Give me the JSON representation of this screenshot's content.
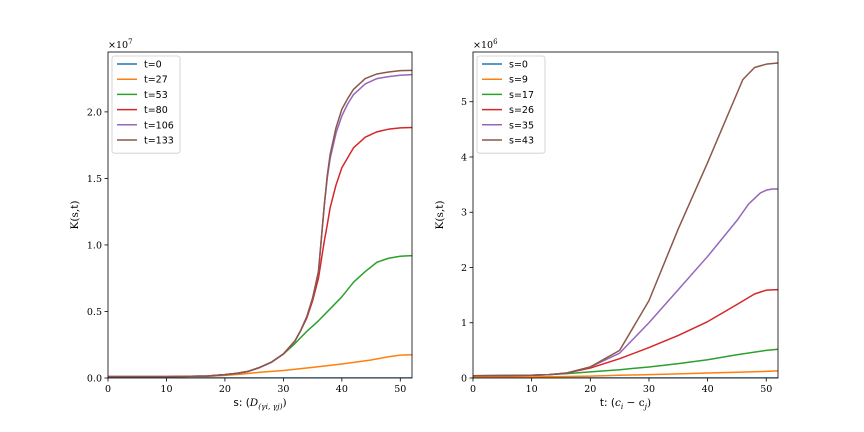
{
  "chart_data": [
    {
      "type": "line",
      "xlabel": "s: (D_{(γ_i, γ_j)})",
      "xlabel_parts": {
        "prefix": "s: (",
        "main": "D",
        "sub": "(γi, γj)",
        "suffix": ")"
      },
      "ylabel": "K(s,t)",
      "xlim": [
        0,
        52
      ],
      "ylim": [
        0,
        24500000
      ],
      "xticks": [
        0,
        10,
        20,
        30,
        40,
        50
      ],
      "yticks": [
        0,
        5000000,
        10000000,
        15000000,
        20000000
      ],
      "ytick_labels": [
        "0.0",
        "0.5",
        "1.0",
        "1.5",
        "2.0"
      ],
      "offset_base": "×10",
      "offset_exp": "7",
      "legend_position": "top-left",
      "grid": false,
      "series": [
        {
          "name": "t=0",
          "color": "#1f77b4",
          "x": [
            0,
            52
          ],
          "y": [
            0,
            0
          ]
        },
        {
          "name": "t=27",
          "color": "#ff7f0e",
          "x": [
            0,
            10,
            17,
            20,
            23,
            26,
            30,
            35,
            40,
            45,
            48,
            50,
            52
          ],
          "y": [
            100000,
            100000,
            120000,
            200000,
            300000,
            430000,
            560000,
            800000,
            1050000,
            1350000,
            1600000,
            1720000,
            1750000
          ]
        },
        {
          "name": "t=53",
          "color": "#2ca02c",
          "x": [
            0,
            10,
            17,
            20,
            22,
            24,
            26,
            28,
            30,
            32,
            34,
            36,
            38,
            40,
            42,
            44,
            46,
            48,
            50,
            52
          ],
          "y": [
            100000,
            100000,
            150000,
            250000,
            350000,
            500000,
            800000,
            1200000,
            1800000,
            2600000,
            3500000,
            4300000,
            5200000,
            6100000,
            7200000,
            8000000,
            8700000,
            9000000,
            9150000,
            9200000
          ]
        },
        {
          "name": "t=80",
          "color": "#d62728",
          "x": [
            0,
            10,
            17,
            20,
            22,
            24,
            26,
            28,
            30,
            32,
            33,
            34,
            35,
            36,
            36.5,
            37,
            37.5,
            38,
            39,
            40,
            42,
            44,
            46,
            48,
            50,
            52
          ],
          "y": [
            100000,
            100000,
            150000,
            250000,
            350000,
            500000,
            800000,
            1200000,
            1800000,
            2800000,
            3600000,
            4500000,
            5800000,
            7500000,
            8900000,
            10300000,
            11500000,
            12800000,
            14500000,
            15800000,
            17300000,
            18100000,
            18500000,
            18700000,
            18800000,
            18830000
          ]
        },
        {
          "name": "t=106",
          "color": "#9467bd",
          "x": [
            0,
            10,
            17,
            20,
            22,
            24,
            26,
            28,
            30,
            32,
            33,
            34,
            35,
            36,
            36.5,
            37,
            37.5,
            38,
            39,
            40,
            41,
            42,
            44,
            46,
            48,
            50,
            52
          ],
          "y": [
            100000,
            100000,
            150000,
            250000,
            350000,
            500000,
            800000,
            1200000,
            1800000,
            2800000,
            3600000,
            4600000,
            6000000,
            8000000,
            10500000,
            13000000,
            15000000,
            16500000,
            18400000,
            19700000,
            20600000,
            21300000,
            22100000,
            22500000,
            22650000,
            22750000,
            22800000
          ]
        },
        {
          "name": "t=133",
          "color": "#8c564b",
          "x": [
            0,
            10,
            17,
            20,
            22,
            24,
            26,
            28,
            30,
            32,
            33,
            34,
            35,
            36,
            36.5,
            37,
            37.5,
            38,
            39,
            40,
            41,
            42,
            44,
            46,
            48,
            50,
            52
          ],
          "y": [
            100000,
            100000,
            150000,
            250000,
            350000,
            500000,
            800000,
            1200000,
            1800000,
            2800000,
            3600000,
            4600000,
            6000000,
            8000000,
            10500000,
            13000000,
            15200000,
            16800000,
            18800000,
            20200000,
            21000000,
            21700000,
            22500000,
            22850000,
            23000000,
            23100000,
            23120000
          ]
        }
      ]
    },
    {
      "type": "line",
      "xlabel": "t: (c_i − c_j)",
      "xlabel_parts": {
        "prefix": "t: (",
        "main": "c",
        "sub": "i",
        "mid": " − c",
        "sub2": "j",
        "suffix": ")"
      },
      "ylabel": "K(s,t)",
      "xlim": [
        0,
        52
      ],
      "ylim": [
        0,
        5900000
      ],
      "xticks": [
        0,
        10,
        20,
        30,
        40,
        50
      ],
      "yticks": [
        0,
        1000000,
        2000000,
        3000000,
        4000000,
        5000000
      ],
      "ytick_labels": [
        "0",
        "1",
        "2",
        "3",
        "4",
        "5"
      ],
      "offset_base": "×10",
      "offset_exp": "6",
      "legend_position": "top-left",
      "grid": false,
      "series": [
        {
          "name": "s=0",
          "color": "#1f77b4",
          "x": [
            0,
            52
          ],
          "y": [
            0,
            0
          ]
        },
        {
          "name": "s=9",
          "color": "#ff7f0e",
          "x": [
            0,
            10,
            15,
            20,
            25,
            30,
            35,
            40,
            45,
            50,
            52
          ],
          "y": [
            20000,
            20000,
            25000,
            35000,
            50000,
            60000,
            75000,
            90000,
            105000,
            120000,
            130000
          ]
        },
        {
          "name": "s=17",
          "color": "#2ca02c",
          "x": [
            0,
            10,
            13,
            16,
            20,
            25,
            30,
            35,
            40,
            45,
            50,
            52
          ],
          "y": [
            40000,
            50000,
            60000,
            80000,
            110000,
            150000,
            200000,
            260000,
            330000,
            420000,
            500000,
            520000
          ]
        },
        {
          "name": "s=26",
          "color": "#d62728",
          "x": [
            0,
            10,
            13,
            16,
            20,
            25,
            30,
            35,
            40,
            45,
            48,
            50,
            52
          ],
          "y": [
            40000,
            50000,
            60000,
            90000,
            180000,
            350000,
            550000,
            770000,
            1020000,
            1330000,
            1520000,
            1590000,
            1600000
          ]
        },
        {
          "name": "s=35",
          "color": "#9467bd",
          "x": [
            0,
            10,
            13,
            16,
            20,
            25,
            30,
            35,
            40,
            45,
            47,
            49,
            50,
            51,
            52
          ],
          "y": [
            40000,
            50000,
            60000,
            90000,
            200000,
            450000,
            1000000,
            1600000,
            2200000,
            2850000,
            3150000,
            3350000,
            3400000,
            3420000,
            3420000
          ]
        },
        {
          "name": "s=43",
          "color": "#8c564b",
          "x": [
            0,
            10,
            13,
            16,
            20,
            25,
            30,
            35,
            40,
            44,
            46,
            48,
            50,
            52
          ],
          "y": [
            40000,
            50000,
            60000,
            90000,
            200000,
            500000,
            1400000,
            2700000,
            3900000,
            4900000,
            5400000,
            5620000,
            5680000,
            5700000
          ]
        }
      ]
    }
  ]
}
